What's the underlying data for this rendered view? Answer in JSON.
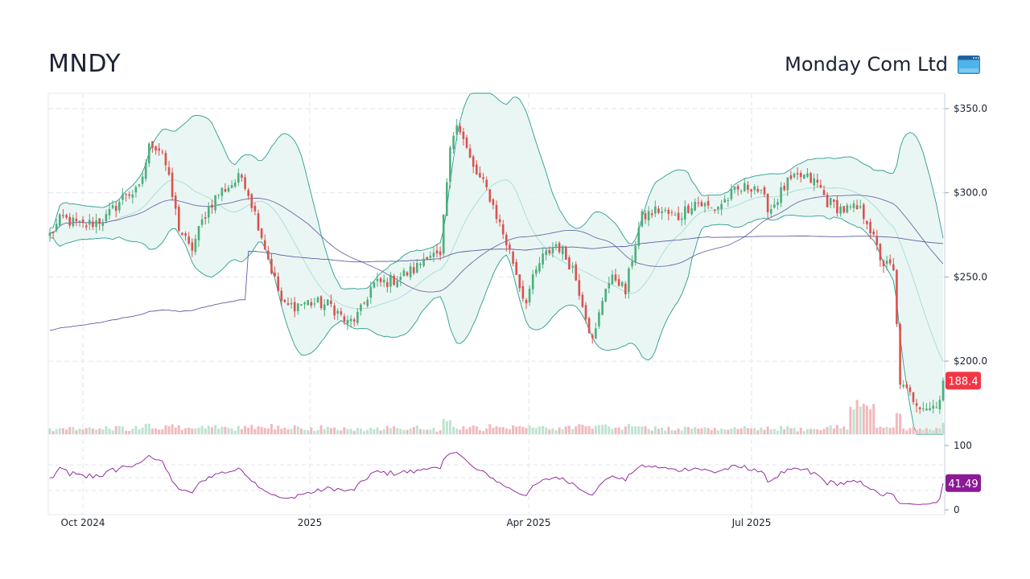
{
  "header": {
    "ticker": "MNDY",
    "company": "Monday Com Ltd",
    "logo_icon": "app-window-icon"
  },
  "colors": {
    "up": "#4caf7d",
    "down": "#d9534f",
    "band_fill": "#e6f4f2",
    "band_line": "#2a9d8f",
    "band_mid": "#a8dcd3",
    "sma50": "#6d6aa8",
    "sma200": "#5c5fa6",
    "rsi": "#8b1a96",
    "price_badge": "#f23645",
    "rsi_badge": "#8b1a96"
  },
  "chart_data": {
    "type": "candlestick",
    "title": "MNDY",
    "x_ticks": [
      "Oct 2024",
      "2025",
      "Apr 2025",
      "Jul 2025"
    ],
    "price_axis": {
      "ticks": [
        "$350.0",
        "$300.0",
        "$250.0",
        "$200.0"
      ],
      "values": [
        350,
        300,
        250,
        200
      ],
      "range": [
        155,
        360
      ]
    },
    "rsi_axis": {
      "ticks": [
        "100",
        "0"
      ],
      "values": [
        100,
        0
      ],
      "guides": [
        70,
        50,
        30
      ]
    },
    "last_price": "188.4",
    "last_rsi": "41.49",
    "series": [
      {
        "name": "close",
        "kind": "candles",
        "anchors": [
          [
            0,
            275
          ],
          [
            15,
            285
          ],
          [
            40,
            280
          ],
          [
            70,
            285
          ],
          [
            95,
            300
          ],
          [
            110,
            300
          ],
          [
            125,
            330
          ],
          [
            140,
            325
          ],
          [
            160,
            280
          ],
          [
            175,
            265
          ],
          [
            195,
            290
          ],
          [
            210,
            300
          ],
          [
            240,
            310
          ],
          [
            260,
            280
          ],
          [
            275,
            255
          ],
          [
            290,
            232
          ],
          [
            320,
            235
          ],
          [
            350,
            233
          ],
          [
            370,
            222
          ],
          [
            385,
            228
          ],
          [
            400,
            245
          ],
          [
            425,
            248
          ],
          [
            455,
            255
          ],
          [
            470,
            265
          ],
          [
            485,
            260
          ],
          [
            496,
            320
          ],
          [
            505,
            345
          ],
          [
            525,
            315
          ],
          [
            545,
            300
          ],
          [
            560,
            280
          ],
          [
            575,
            260
          ],
          [
            590,
            235
          ],
          [
            610,
            260
          ],
          [
            630,
            270
          ],
          [
            650,
            255
          ],
          [
            665,
            230
          ],
          [
            675,
            210
          ],
          [
            690,
            245
          ],
          [
            705,
            250
          ],
          [
            715,
            240
          ],
          [
            725,
            265
          ],
          [
            735,
            285
          ],
          [
            755,
            290
          ],
          [
            780,
            285
          ],
          [
            800,
            295
          ],
          [
            825,
            290
          ],
          [
            850,
            300
          ],
          [
            875,
            305
          ],
          [
            895,
            290
          ],
          [
            915,
            305
          ],
          [
            935,
            310
          ],
          [
            955,
            305
          ],
          [
            965,
            295
          ],
          [
            985,
            290
          ],
          [
            1005,
            290
          ],
          [
            1015,
            285
          ],
          [
            1025,
            270
          ],
          [
            1035,
            258
          ],
          [
            1048,
            255
          ],
          [
            1057,
            185
          ],
          [
            1068,
            180
          ],
          [
            1080,
            175
          ],
          [
            1095,
            172
          ],
          [
            1105,
            178
          ],
          [
            1115,
            183
          ],
          [
            1130,
            182
          ],
          [
            1145,
            188
          ],
          [
            1160,
            195
          ],
          [
            1170,
            198
          ],
          [
            1174,
            188.4
          ]
        ]
      },
      {
        "name": "volume",
        "kind": "bars"
      },
      {
        "name": "SMA 50",
        "kind": "line"
      },
      {
        "name": "SMA 200",
        "kind": "line"
      },
      {
        "name": "Bollinger Bands",
        "kind": "band"
      },
      {
        "name": "RSI",
        "kind": "line",
        "last": 41.49
      }
    ]
  }
}
